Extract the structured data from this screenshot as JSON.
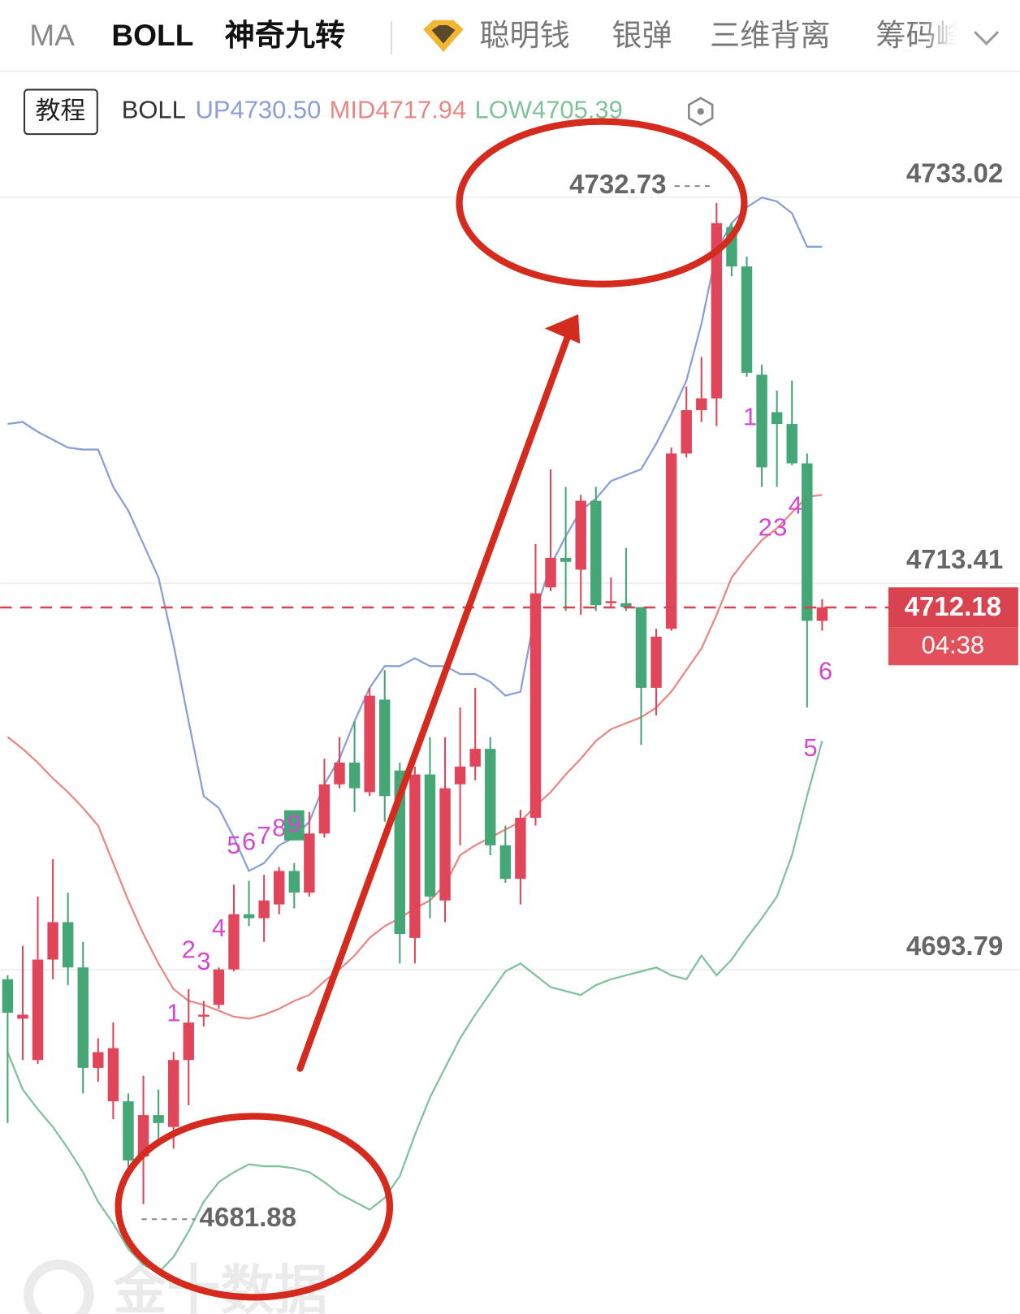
{
  "toolbar": {
    "tabs": [
      "MA",
      "BOLL",
      "神奇九转"
    ],
    "tools": [
      "聪明钱",
      "银弹",
      "三维背离",
      "筹码峰"
    ]
  },
  "legend": {
    "button": "教程",
    "title": "BOLL"
  },
  "watermark": "金十数据",
  "chart_data": {
    "type": "candlestick",
    "up_color": "#e0455a",
    "down_color": "#45a676",
    "ylim": [
      4676.3,
      4739.2
    ],
    "yticks": [
      4733.02,
      4713.41,
      4693.79
    ],
    "grid": true,
    "open": [
      4693.3,
      4691.3,
      4689.2,
      4694.3,
      4696.2,
      4693.9,
      4688.8,
      4687.1,
      4687.1,
      4684.3,
      4686.4,
      4685.8,
      4689.2,
      4691.4,
      4692.0,
      4693.8,
      4696.6,
      4696.4,
      4697.1,
      4698.8,
      4697.7,
      4700.7,
      4703.2,
      4704.3,
      4702.8,
      4707.5,
      4703.9,
      4695.4,
      4703.7,
      4697.3,
      4703.2,
      4704.1,
      4705.0,
      4700.1,
      4698.4,
      4701.5,
      4713.2,
      4714.7,
      4714.1,
      4717.6,
      4712.4,
      4712.4,
      4712.2,
      4708.1,
      4711.1,
      4720.0,
      4722.2,
      4722.8,
      4731.5,
      4729.5,
      4724.0,
      4722.1,
      4721.5,
      4719.5,
      4711.5
    ],
    "high": [
      4693.5,
      4695.0,
      4697.5,
      4699.4,
      4697.7,
      4695.2,
      4690.3,
      4691.1,
      4687.5,
      4688.4,
      4687.7,
      4689.6,
      4692.8,
      4692.2,
      4693.9,
      4698.1,
      4698.3,
      4698.6,
      4699.0,
      4699.2,
      4701.8,
      4704.5,
      4705.6,
      4706.4,
      4708.1,
      4709.0,
      4704.3,
      4704.1,
      4705.6,
      4705.6,
      4707.1,
      4708.1,
      4705.6,
      4701.1,
      4701.9,
      4715.4,
      4719.2,
      4718.3,
      4717.9,
      4718.3,
      4713.7,
      4715.2,
      4712.2,
      4711.1,
      4720.3,
      4723.4,
      4724.9,
      4732.73,
      4731.7,
      4730.0,
      4724.5,
      4723.2,
      4723.7,
      4720.0,
      4712.6
    ],
    "low": [
      4686.0,
      4689.2,
      4689.0,
      4693.3,
      4693.0,
      4687.5,
      4688.1,
      4686.2,
      4683.7,
      4681.88,
      4685.2,
      4684.7,
      4686.9,
      4690.9,
      4691.8,
      4693.7,
      4696.0,
      4695.2,
      4696.6,
      4696.9,
      4697.5,
      4700.5,
      4703.0,
      4701.8,
      4702.6,
      4701.3,
      4694.1,
      4694.1,
      4696.4,
      4696.2,
      4700.1,
      4703.4,
      4699.6,
      4698.2,
      4697.1,
      4701.1,
      4713.0,
      4712.0,
      4711.8,
      4712.0,
      4712.2,
      4712.0,
      4705.2,
      4706.7,
      4711.0,
      4719.8,
      4721.6,
      4721.4,
      4729.0,
      4723.9,
      4718.3,
      4718.3,
      4719.4,
      4707.1,
      4711.0
    ],
    "close": [
      4691.6,
      4691.5,
      4694.3,
      4696.2,
      4693.9,
      4688.8,
      4689.6,
      4689.8,
      4684.1,
      4686.4,
      4686.0,
      4689.2,
      4691.1,
      4691.5,
      4693.8,
      4696.6,
      4696.4,
      4697.3,
      4698.8,
      4697.7,
      4700.7,
      4703.2,
      4704.3,
      4703.0,
      4707.7,
      4702.6,
      4695.6,
      4703.7,
      4697.5,
      4703.0,
      4704.1,
      4705.0,
      4700.1,
      4698.4,
      4701.5,
      4712.9,
      4714.7,
      4714.5,
      4717.6,
      4712.3,
      4712.5,
      4712.2,
      4708.1,
      4710.7,
      4720.0,
      4722.2,
      4722.8,
      4731.7,
      4729.5,
      4724.1,
      4719.3,
      4721.5,
      4719.5,
      4711.5,
      4712.18
    ],
    "series": [
      {
        "name": "UP4730.50",
        "color": "#8a9fd8",
        "values": [
          4721.5,
          4721.6,
          4721.1,
          4720.7,
          4720.3,
          4720.2,
          4720.2,
          4718.3,
          4717.1,
          4715.4,
          4713.7,
          4710.3,
          4706.4,
          4702.6,
          4702.0,
          4700.5,
          4698.8,
          4699.2,
          4700.1,
          4700.5,
          4701.3,
          4703.2,
          4704.5,
          4706.4,
          4708.1,
          4709.2,
          4709.2,
          4709.6,
          4709.2,
          4709.2,
          4708.8,
          4708.8,
          4708.4,
          4707.7,
          4707.9,
          4712.0,
          4714.3,
          4715.8,
          4717.1,
          4717.7,
          4718.6,
          4718.9,
          4719.2,
          4720.5,
          4722.0,
          4723.7,
          4726.6,
          4730.3,
          4731.7,
          4732.5,
          4733.0,
          4732.8,
          4732.2,
          4730.5,
          4730.5
        ]
      },
      {
        "name": "MID4717.94",
        "color": "#e88883",
        "values": [
          4705.6,
          4705.0,
          4704.3,
          4703.5,
          4702.8,
          4702.0,
          4701.1,
          4699.2,
          4697.3,
          4695.6,
          4694.1,
          4692.8,
          4692.2,
          4692.0,
          4691.7,
          4691.4,
          4691.3,
          4691.5,
          4691.8,
          4692.2,
          4692.5,
          4693.2,
          4693.8,
          4694.5,
          4695.4,
          4696.0,
          4696.4,
          4696.9,
          4697.3,
          4698.1,
          4699.6,
          4700.1,
          4700.5,
          4700.9,
          4701.3,
          4702.1,
          4702.8,
          4703.7,
          4704.5,
          4705.4,
          4706.0,
          4706.3,
          4706.6,
          4707.1,
          4707.9,
          4709.0,
          4710.1,
          4711.8,
          4713.7,
          4714.7,
          4715.6,
          4716.2,
          4717.0,
          4717.8,
          4717.9
        ]
      },
      {
        "name": "LOW4705.39",
        "color": "#7fc29b",
        "values": [
          4689.6,
          4687.7,
          4686.7,
          4685.8,
          4684.7,
          4683.5,
          4682.0,
          4680.9,
          4679.6,
          4678.8,
          4678.4,
          4679.2,
          4680.5,
          4682.0,
          4683.0,
          4683.5,
          4683.9,
          4683.8,
          4683.8,
          4683.7,
          4683.5,
          4683.0,
          4682.4,
          4682.0,
          4681.6,
          4682.2,
          4683.3,
          4685.4,
          4687.3,
          4688.8,
          4690.3,
          4691.5,
          4692.6,
          4693.7,
          4694.1,
          4693.5,
          4692.9,
          4692.7,
          4692.5,
          4693.0,
          4693.3,
          4693.5,
          4693.7,
          4693.9,
          4693.5,
          4693.3,
          4694.5,
          4693.5,
          4694.3,
          4695.4,
          4696.4,
          4697.5,
          4699.6,
          4702.6,
          4705.4
        ]
      }
    ],
    "td_color": "#d447d1",
    "td_up": [
      null,
      null,
      null,
      null,
      null,
      null,
      null,
      null,
      null,
      null,
      null,
      1,
      2,
      3,
      4,
      5,
      6,
      7,
      8,
      9,
      null,
      null,
      null,
      null,
      null,
      null,
      null,
      null,
      null,
      null,
      null,
      null,
      null,
      null,
      null,
      null,
      null,
      null,
      null,
      null,
      null,
      null,
      null,
      null,
      null,
      null,
      null,
      null,
      null,
      null,
      null,
      null,
      null,
      null,
      null
    ],
    "td_down": [
      null,
      null,
      null,
      null,
      null,
      null,
      null,
      null,
      null,
      null,
      null,
      null,
      null,
      null,
      null,
      null,
      null,
      null,
      null,
      null,
      null,
      null,
      null,
      null,
      null,
      null,
      null,
      null,
      null,
      null,
      null,
      null,
      null,
      null,
      null,
      null,
      null,
      null,
      null,
      null,
      null,
      null,
      null,
      null,
      null,
      null,
      null,
      null,
      null,
      1,
      2,
      3,
      4,
      5,
      6
    ],
    "countdown": "04:38"
  }
}
